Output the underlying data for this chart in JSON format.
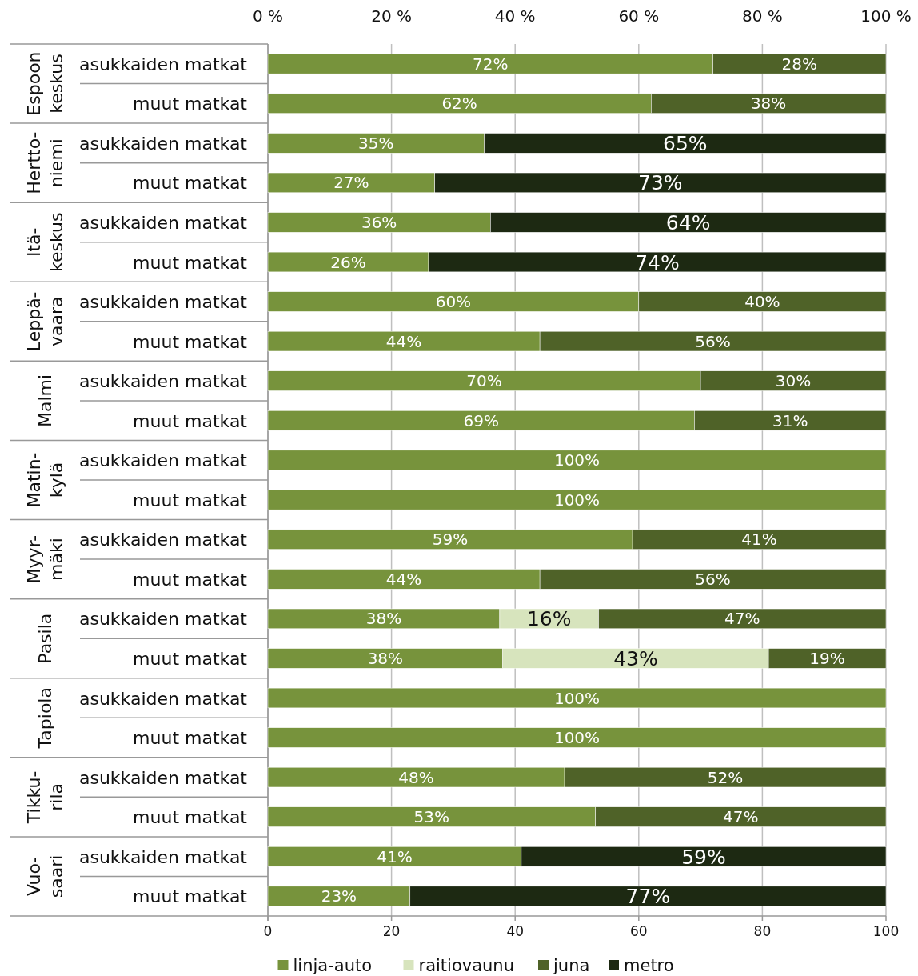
{
  "chart_data": {
    "type": "bar",
    "orientation": "horizontal",
    "stacked": true,
    "categories": [
      "asukkaiden matkat",
      "muut matkat",
      "asukkaiden matkat",
      "muut matkat",
      "asukkaiden matkat",
      "muut matkat",
      "asukkaiden matkat",
      "muut matkat",
      "asukkaiden matkat",
      "muut matkat",
      "asukkaiden matkat",
      "muut matkat",
      "asukkaiden matkat",
      "muut matkat",
      "asukkaiden matkat",
      "muut matkat",
      "asukkaiden matkat",
      "muut matkat",
      "asukkaiden matkat",
      "muut matkat",
      "asukkaiden matkat",
      "muut matkat"
    ],
    "annotations": [
      "Espoon\nkeskus",
      "Hertto-\nniemi",
      "Itä-\nkeskus",
      "Leppä-\nvaara",
      "Malmi",
      "Matin-\nkylä",
      "Myyr-\nmäki",
      "Pasila",
      "Tapiola",
      "Tikku-\nrila",
      "Vuo-\nsaari"
    ],
    "series": [
      {
        "name": "linja-auto",
        "color": "#77933c",
        "values": [
          72,
          62,
          35,
          27,
          36,
          26,
          60,
          44,
          70,
          69,
          100,
          100,
          59,
          44,
          37.5,
          38,
          100,
          100,
          48,
          53,
          41,
          23
        ],
        "value_labels": [
          "72%",
          "62%",
          "35%",
          "27%",
          "36%",
          "26%",
          "60%",
          "44%",
          "70%",
          "69%",
          "100%",
          "100%",
          "59%",
          "44%",
          "38%",
          "38%",
          "100%",
          "100%",
          "48%",
          "53%",
          "41%",
          "23%"
        ]
      },
      {
        "name": "raitiovaunu",
        "color": "#d7e4bd",
        "values": [
          null,
          null,
          null,
          null,
          null,
          null,
          null,
          null,
          null,
          null,
          null,
          null,
          null,
          null,
          16,
          43,
          null,
          null,
          null,
          null,
          null,
          null
        ],
        "value_labels": [
          null,
          null,
          null,
          null,
          null,
          null,
          null,
          null,
          null,
          null,
          null,
          null,
          null,
          null,
          "16%",
          "43%",
          null,
          null,
          null,
          null,
          null,
          null
        ]
      },
      {
        "name": "juna",
        "color": "#4f6228",
        "values": [
          28,
          38,
          null,
          null,
          null,
          null,
          40,
          56,
          30,
          31,
          null,
          null,
          41,
          56,
          46.5,
          19,
          null,
          null,
          52,
          47,
          null,
          null
        ],
        "value_labels": [
          "28%",
          "38%",
          null,
          null,
          null,
          null,
          "40%",
          "56%",
          "30%",
          "31%",
          null,
          null,
          "41%",
          "56%",
          "47%",
          "19%",
          null,
          null,
          "52%",
          "47%",
          null,
          null
        ]
      },
      {
        "name": "metro",
        "color": "#1d2912",
        "values": [
          null,
          null,
          65,
          73,
          64,
          74,
          null,
          null,
          null,
          null,
          null,
          null,
          null,
          null,
          null,
          null,
          null,
          null,
          null,
          null,
          59,
          77
        ],
        "value_labels": [
          null,
          null,
          "65%",
          "73%",
          "64%",
          "74%",
          null,
          null,
          null,
          null,
          null,
          null,
          null,
          null,
          null,
          null,
          null,
          null,
          null,
          null,
          "59%",
          "77%"
        ]
      }
    ],
    "xlim": [
      0,
      100
    ],
    "xticks": [
      0,
      20,
      40,
      60,
      80,
      100
    ],
    "x2lim": [
      0,
      100
    ],
    "x2ticks": [
      {
        "value": 0,
        "label": "0 %"
      },
      {
        "value": 20,
        "label": "20 %"
      },
      {
        "value": 40,
        "label": "40 %"
      },
      {
        "value": 60,
        "label": "60 %"
      },
      {
        "value": 80,
        "label": "80 %"
      },
      {
        "value": 100,
        "label": "100 %"
      }
    ],
    "grid": "x",
    "legend": "bottom"
  }
}
